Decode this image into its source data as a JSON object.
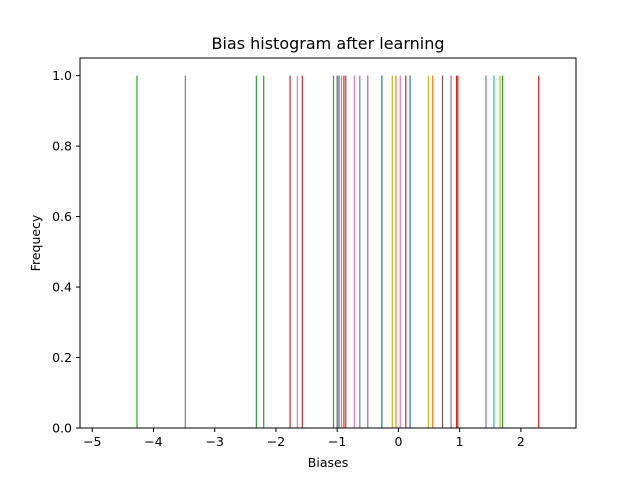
{
  "chart_data": {
    "type": "bar",
    "title": "Bias histogram after learning",
    "xlabel": "Biases",
    "ylabel": "Frequecy",
    "xlim": [
      -5.2,
      2.9
    ],
    "ylim": [
      0.0,
      1.05
    ],
    "xticks": [
      -5,
      -4,
      -3,
      -2,
      -1,
      0,
      1,
      2
    ],
    "xtick_labels": [
      "−5",
      "−4",
      "−3",
      "−2",
      "−1",
      "0",
      "1",
      "2"
    ],
    "yticks": [
      0.0,
      0.2,
      0.4,
      0.6,
      0.8,
      1.0
    ],
    "ytick_labels": [
      "0.0",
      "0.2",
      "0.4",
      "0.6",
      "0.8",
      "1.0"
    ],
    "grid": false,
    "legend": "none",
    "series": [
      {
        "value": -4.27,
        "frequency": 1,
        "color": "#2ca02c"
      },
      {
        "value": -3.48,
        "frequency": 1,
        "color": "#7f7f7f"
      },
      {
        "value": -2.32,
        "frequency": 1,
        "color": "#2ca02c"
      },
      {
        "value": -2.2,
        "frequency": 1,
        "color": "#2ca02c"
      },
      {
        "value": -1.77,
        "frequency": 1,
        "color": "#d62728"
      },
      {
        "value": -1.65,
        "frequency": 1,
        "color": "#e377c2"
      },
      {
        "value": -1.57,
        "frequency": 1,
        "color": "#d62728"
      },
      {
        "value": -1.06,
        "frequency": 1,
        "color": "#2ca02c"
      },
      {
        "value": -1.0,
        "frequency": 1,
        "color": "#8c564b"
      },
      {
        "value": -0.97,
        "frequency": 1,
        "color": "#1f77b4"
      },
      {
        "value": -0.93,
        "frequency": 1,
        "color": "#ff7f0e"
      },
      {
        "value": -0.89,
        "frequency": 1,
        "color": "#d62728"
      },
      {
        "value": -0.86,
        "frequency": 1,
        "color": "#8c564b"
      },
      {
        "value": -0.72,
        "frequency": 1,
        "color": "#e377c2"
      },
      {
        "value": -0.63,
        "frequency": 1,
        "color": "#7f7f7f"
      },
      {
        "value": -0.5,
        "frequency": 1,
        "color": "#9467bd"
      },
      {
        "value": -0.27,
        "frequency": 1,
        "color": "#1f77b4"
      },
      {
        "value": -0.1,
        "frequency": 1,
        "color": "#bcbd22"
      },
      {
        "value": -0.04,
        "frequency": 1,
        "color": "#ff7f0e"
      },
      {
        "value": 0.03,
        "frequency": 1,
        "color": "#e377c2"
      },
      {
        "value": 0.12,
        "frequency": 1,
        "color": "#d62728"
      },
      {
        "value": 0.19,
        "frequency": 1,
        "color": "#1f77b4"
      },
      {
        "value": 0.49,
        "frequency": 1,
        "color": "#bcbd22"
      },
      {
        "value": 0.56,
        "frequency": 1,
        "color": "#ff7f0e"
      },
      {
        "value": 0.72,
        "frequency": 1,
        "color": "#8c564b"
      },
      {
        "value": 0.86,
        "frequency": 1,
        "color": "#9467bd"
      },
      {
        "value": 0.95,
        "frequency": 1,
        "color": "#d62728"
      },
      {
        "value": 0.97,
        "frequency": 1,
        "color": "#d62728"
      },
      {
        "value": 1.43,
        "frequency": 1,
        "color": "#9467bd"
      },
      {
        "value": 1.56,
        "frequency": 1,
        "color": "#17becf"
      },
      {
        "value": 1.66,
        "frequency": 1,
        "color": "#bcbd22"
      },
      {
        "value": 1.7,
        "frequency": 1,
        "color": "#2ca02c"
      },
      {
        "value": 2.29,
        "frequency": 1,
        "color": "#d62728"
      }
    ]
  }
}
